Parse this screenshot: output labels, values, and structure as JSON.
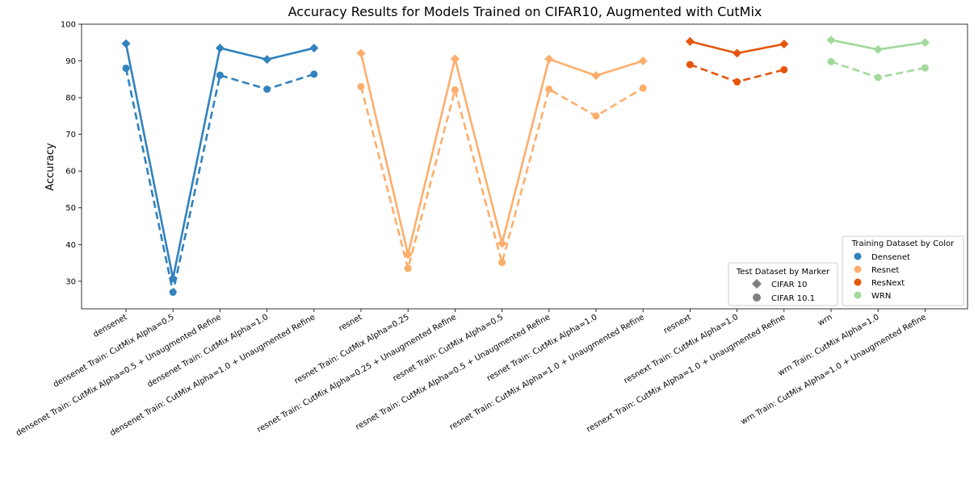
{
  "chart_data": {
    "type": "line",
    "title": "Accuracy Results for Models Trained on CIFAR10, Augmented with CutMix",
    "ylabel": "Accuracy",
    "xlabel": "",
    "ylim": [
      22.5,
      100
    ],
    "yticks": [
      30,
      40,
      50,
      60,
      70,
      80,
      90,
      100
    ],
    "grid": false,
    "categories": [
      "densenet",
      "densenet Train: CutMix Alpha=0.5",
      "densenet Train: CutMix Alpha=0.5 + Unaugmented Refine",
      "densenet Train: CutMix Alpha=1.0",
      "densenet Train: CutMix Alpha=1.0 + Unaugmented Refine",
      "resnet",
      "resnet Train: CutMix Alpha=0.25",
      "resnet Train: CutMix Alpha=0.25 + Unaugmented Refine",
      "resnet Train: CutMix Alpha=0.5",
      "resnet Train: CutMix Alpha=0.5 + Unaugmented Refine",
      "resnet Train: CutMix Alpha=1.0",
      "resnet Train: CutMix Alpha=1.0 + Unaugmented Refine",
      "resnext",
      "resnext Train: CutMix Alpha=1.0",
      "resnext Train: CutMix Alpha=1.0 + Unaugmented Refine",
      "wrn",
      "wrn Train: CutMix Alpha=1.0",
      "wrn Train: CutMix Alpha=1.0 + Unaugmented Refine"
    ],
    "groups": [
      {
        "name": "Densenet",
        "color": "#3182bd",
        "start": 0,
        "cifar10": [
          94.7,
          30.8,
          93.5,
          90.4,
          93.5
        ],
        "cifar101": [
          88.0,
          27.0,
          86.1,
          82.3,
          86.4
        ]
      },
      {
        "name": "Resnet",
        "color": "#fdae6b",
        "start": 5,
        "cifar10": [
          92.1,
          37.3,
          90.6,
          40.3,
          90.5,
          86.0,
          90.0
        ],
        "cifar101": [
          83.0,
          33.5,
          82.1,
          35.1,
          82.3,
          75.0,
          82.6
        ]
      },
      {
        "name": "ResNext",
        "color": "#e6550d",
        "start": 12,
        "cifar10": [
          95.3,
          92.1,
          94.6
        ],
        "cifar101": [
          89.0,
          84.3,
          87.6
        ]
      },
      {
        "name": "WRN",
        "color": "#a1d99b",
        "start": 15,
        "cifar10": [
          95.7,
          93.1,
          95.0
        ],
        "cifar101": [
          89.8,
          85.5,
          88.1
        ]
      }
    ],
    "legend_marker": {
      "title": "Test Dataset by Marker",
      "items": [
        {
          "label": "CIFAR 10",
          "marker": "diamond"
        },
        {
          "label": "CIFAR 10.1",
          "marker": "circle"
        }
      ],
      "marker_color": "#7f7f7f",
      "placement": "lower-right"
    },
    "legend_color": {
      "title": "Training Dataset by Color",
      "items": [
        {
          "label": "Densenet",
          "color": "#3182bd"
        },
        {
          "label": "Resnet",
          "color": "#fdae6b"
        },
        {
          "label": "ResNext",
          "color": "#e6550d"
        },
        {
          "label": "WRN",
          "color": "#a1d99b"
        }
      ],
      "placement": "lower-right"
    }
  }
}
